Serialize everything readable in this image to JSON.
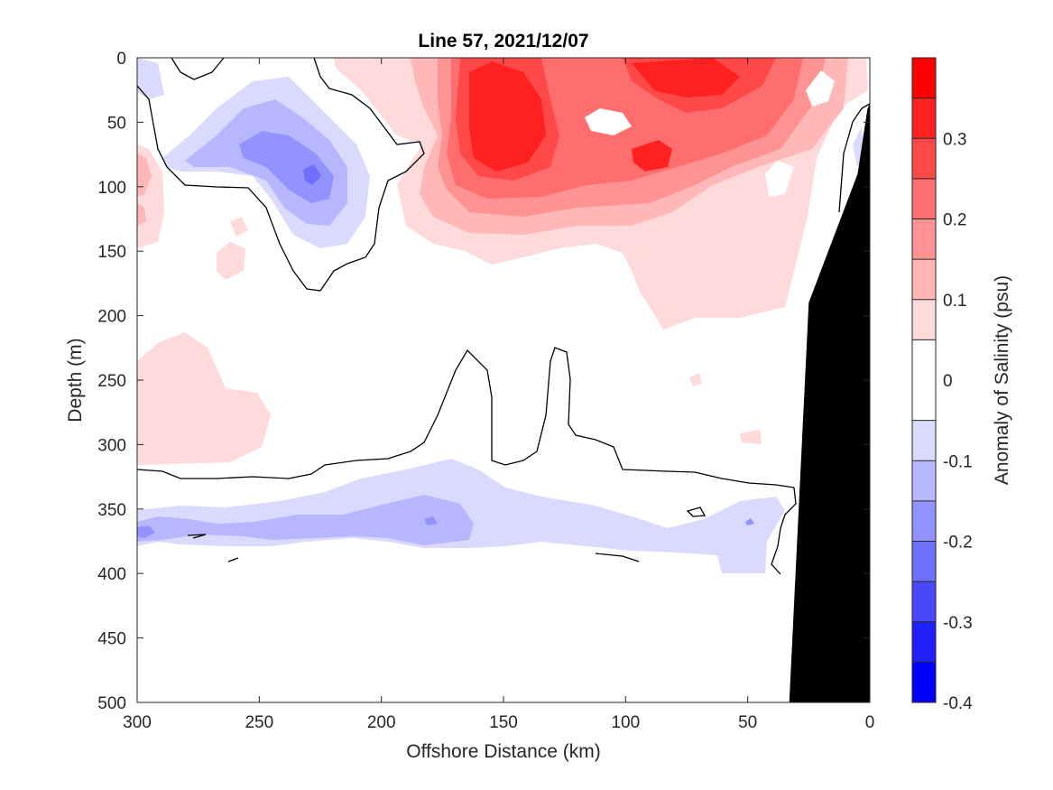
{
  "chart_data": {
    "type": "filled-contour",
    "title": "Line 57, 2021/12/07",
    "xlabel": "Offshore Distance (km)",
    "ylabel": "Depth (m)",
    "xlim": [
      300,
      0
    ],
    "x_reversed": true,
    "ylim": [
      0,
      500
    ],
    "y_reversed": true,
    "xticks": [
      "300",
      "250",
      "200",
      "150",
      "100",
      "50",
      "0"
    ],
    "yticks": [
      "0",
      "50",
      "100",
      "150",
      "200",
      "250",
      "300",
      "350",
      "400",
      "450",
      "500"
    ],
    "colorbar": {
      "label": "Anomaly of Salinity (psu)",
      "range": [
        -0.4,
        0.4
      ],
      "ticks": [
        "0.3",
        "0.2",
        "0.1",
        "0",
        "-0.1",
        "-0.2",
        "-0.3",
        "-0.4"
      ],
      "tick_values": [
        0.3,
        0.2,
        0.1,
        0,
        -0.1,
        -0.2,
        -0.3,
        -0.4
      ],
      "levels": [
        -0.4,
        -0.35,
        -0.3,
        -0.25,
        -0.2,
        -0.15,
        -0.1,
        -0.05,
        0.05,
        0.1,
        0.15,
        0.2,
        0.25,
        0.3,
        0.35,
        0.4
      ],
      "colors": [
        "#0000ff",
        "#2020ff",
        "#4848ff",
        "#6e6eff",
        "#9393ff",
        "#b7b7ff",
        "#dadaff",
        "#ffffff",
        "#ffdada",
        "#ffb7b7",
        "#ff9393",
        "#ff6e6e",
        "#ff4848",
        "#ff2020",
        "#ff0000"
      ]
    },
    "features": [
      {
        "name": "surface-salty-core",
        "anomaly": 0.35,
        "x_range_km": [
          130,
          165
        ],
        "depth_range_m": [
          20,
          90
        ]
      },
      {
        "name": "offshore-fresh-core",
        "anomaly": -0.15,
        "x_range_km": [
          220,
          245
        ],
        "depth_range_m": [
          70,
          110
        ]
      },
      {
        "name": "deep-fresh-layer",
        "anomaly": -0.1,
        "x_range_km": [
          40,
          300
        ],
        "depth_range_m": [
          330,
          390
        ]
      },
      {
        "name": "mid-depth-salty-patch",
        "anomaly": 0.05,
        "x_range_km": [
          250,
          300
        ],
        "depth_range_m": [
          220,
          310
        ]
      }
    ],
    "bathymetry": {
      "color": "#000000",
      "distance_km": [
        33,
        25,
        15,
        5,
        1,
        0
      ],
      "depth_m": [
        500,
        190,
        140,
        90,
        40,
        35
      ]
    }
  }
}
